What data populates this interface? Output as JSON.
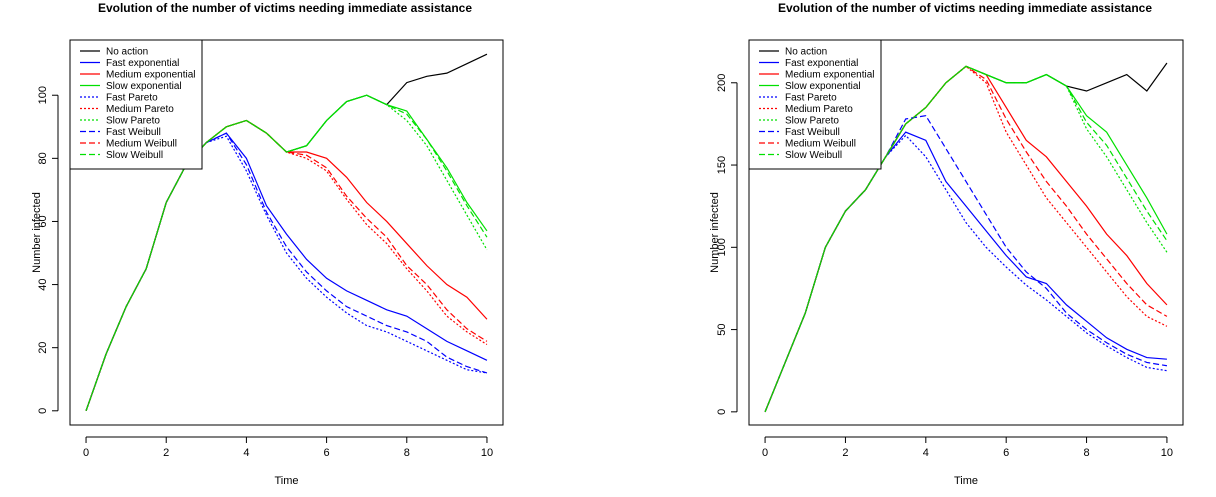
{
  "chart_data": [
    {
      "type": "line",
      "title": "Evolution of the number of victims needing immediate assistance",
      "xlabel": "Time",
      "ylabel": "Number infected",
      "x": [
        0,
        0.5,
        1,
        1.5,
        2,
        2.5,
        3,
        3.5,
        4,
        4.5,
        5,
        5.5,
        6,
        6.5,
        7,
        7.5,
        8,
        8.5,
        9,
        9.5,
        10
      ],
      "xlim": [
        -0.4,
        10.4
      ],
      "ylim": [
        -4.5,
        117.5
      ],
      "xticks": [
        0,
        2,
        4,
        6,
        8,
        10
      ],
      "yticks": [
        0,
        20,
        40,
        60,
        80,
        100
      ],
      "legend": "top-left",
      "series": [
        {
          "name": "No action",
          "color": "#000000",
          "dash": "solid",
          "values": [
            0,
            18,
            33,
            45,
            66,
            78,
            85,
            90,
            92,
            88,
            82,
            84,
            92,
            98,
            100,
            97,
            104,
            106,
            107,
            110,
            113
          ]
        },
        {
          "name": "Fast exponential",
          "color": "#0000ff",
          "dash": "solid",
          "values": [
            0,
            18,
            33,
            45,
            66,
            78,
            85,
            88,
            80,
            65,
            56,
            48,
            42,
            38,
            35,
            32,
            30,
            26,
            22,
            19,
            16
          ]
        },
        {
          "name": "Medium exponential",
          "color": "#ff0000",
          "dash": "solid",
          "values": [
            0,
            18,
            33,
            45,
            66,
            78,
            85,
            90,
            92,
            88,
            82,
            82,
            80,
            74,
            66,
            60,
            53,
            46,
            40,
            36,
            29
          ]
        },
        {
          "name": "Slow exponential",
          "color": "#00e000",
          "dash": "solid",
          "values": [
            0,
            18,
            33,
            45,
            66,
            78,
            85,
            90,
            92,
            88,
            82,
            84,
            92,
            98,
            100,
            97,
            95,
            86,
            77,
            66,
            57
          ]
        },
        {
          "name": "Fast Pareto",
          "color": "#0000ff",
          "dash": "dotted",
          "values": [
            0,
            18,
            33,
            45,
            66,
            78,
            85,
            87,
            76,
            62,
            50,
            42,
            36,
            31,
            27,
            25,
            22,
            19,
            16,
            13,
            12
          ]
        },
        {
          "name": "Medium Pareto",
          "color": "#ff0000",
          "dash": "dotted",
          "values": [
            0,
            18,
            33,
            45,
            66,
            78,
            85,
            90,
            92,
            88,
            82,
            80,
            76,
            67,
            59,
            53,
            45,
            38,
            30,
            25,
            21
          ]
        },
        {
          "name": "Slow Pareto",
          "color": "#00e000",
          "dash": "dotted",
          "values": [
            0,
            18,
            33,
            45,
            66,
            78,
            85,
            90,
            92,
            88,
            82,
            84,
            92,
            98,
            100,
            97,
            92,
            84,
            73,
            62,
            51
          ]
        },
        {
          "name": "Fast Weibull",
          "color": "#0000ff",
          "dash": "dashed",
          "values": [
            0,
            18,
            33,
            45,
            66,
            78,
            85,
            88,
            78,
            63,
            52,
            44,
            38,
            33,
            30,
            27,
            25,
            22,
            17,
            14,
            12
          ]
        },
        {
          "name": "Medium Weibull",
          "color": "#ff0000",
          "dash": "dashed",
          "values": [
            0,
            18,
            33,
            45,
            66,
            78,
            85,
            90,
            92,
            88,
            82,
            81,
            77,
            68,
            61,
            55,
            46,
            40,
            32,
            26,
            22
          ]
        },
        {
          "name": "Slow Weibull",
          "color": "#00e000",
          "dash": "dashed",
          "values": [
            0,
            18,
            33,
            45,
            66,
            78,
            85,
            90,
            92,
            88,
            82,
            84,
            92,
            98,
            100,
            97,
            94,
            86,
            76,
            65,
            55
          ]
        }
      ]
    },
    {
      "type": "line",
      "title": "Evolution of the number of victims needing immediate assistance",
      "xlabel": "Time",
      "ylabel": "Number infected",
      "x": [
        0,
        0.5,
        1,
        1.5,
        2,
        2.5,
        3,
        3.5,
        4,
        4.5,
        5,
        5.5,
        6,
        6.5,
        7,
        7.5,
        8,
        8.5,
        9,
        9.5,
        10
      ],
      "xlim": [
        -0.4,
        10.4
      ],
      "ylim": [
        -8,
        226
      ],
      "xticks": [
        0,
        2,
        4,
        6,
        8,
        10
      ],
      "yticks": [
        0,
        50,
        100,
        150,
        200
      ],
      "legend": "top-left",
      "series": [
        {
          "name": "No action",
          "color": "#000000",
          "dash": "solid",
          "values": [
            0,
            30,
            60,
            100,
            122,
            135,
            155,
            175,
            185,
            200,
            210,
            205,
            200,
            200,
            205,
            198,
            195,
            200,
            205,
            195,
            212
          ]
        },
        {
          "name": "Fast exponential",
          "color": "#0000ff",
          "dash": "solid",
          "values": [
            0,
            30,
            60,
            100,
            122,
            135,
            155,
            170,
            165,
            140,
            125,
            110,
            95,
            82,
            78,
            65,
            55,
            45,
            38,
            33,
            32
          ]
        },
        {
          "name": "Medium exponential",
          "color": "#ff0000",
          "dash": "solid",
          "values": [
            0,
            30,
            60,
            100,
            122,
            135,
            155,
            175,
            185,
            200,
            210,
            205,
            185,
            165,
            155,
            140,
            125,
            108,
            95,
            78,
            65
          ]
        },
        {
          "name": "Slow exponential",
          "color": "#00e000",
          "dash": "solid",
          "values": [
            0,
            30,
            60,
            100,
            122,
            135,
            155,
            175,
            185,
            200,
            210,
            205,
            200,
            200,
            205,
            198,
            180,
            170,
            150,
            130,
            108
          ]
        },
        {
          "name": "Fast Pareto",
          "color": "#0000ff",
          "dash": "dotted",
          "values": [
            0,
            30,
            60,
            100,
            122,
            135,
            155,
            168,
            155,
            135,
            115,
            100,
            88,
            77,
            68,
            58,
            48,
            40,
            33,
            27,
            25
          ]
        },
        {
          "name": "Medium Pareto",
          "color": "#ff0000",
          "dash": "dotted",
          "values": [
            0,
            30,
            60,
            100,
            122,
            135,
            155,
            175,
            185,
            200,
            210,
            200,
            170,
            150,
            130,
            115,
            100,
            85,
            70,
            58,
            52
          ]
        },
        {
          "name": "Slow Pareto",
          "color": "#00e000",
          "dash": "dotted",
          "values": [
            0,
            30,
            60,
            100,
            122,
            135,
            155,
            175,
            185,
            200,
            210,
            205,
            200,
            200,
            205,
            198,
            172,
            155,
            135,
            115,
            97
          ]
        },
        {
          "name": "Fast Weibull",
          "color": "#0000ff",
          "dash": "dashed",
          "values": [
            0,
            30,
            60,
            100,
            122,
            135,
            155,
            178,
            180,
            160,
            140,
            120,
            100,
            85,
            75,
            60,
            50,
            42,
            35,
            30,
            28
          ]
        },
        {
          "name": "Medium Weibull",
          "color": "#ff0000",
          "dash": "dashed",
          "values": [
            0,
            30,
            60,
            100,
            122,
            135,
            155,
            175,
            185,
            200,
            210,
            202,
            178,
            158,
            140,
            125,
            108,
            93,
            78,
            65,
            58
          ]
        },
        {
          "name": "Slow Weibull",
          "color": "#00e000",
          "dash": "dashed",
          "values": [
            0,
            30,
            60,
            100,
            122,
            135,
            155,
            175,
            185,
            200,
            210,
            205,
            200,
            200,
            205,
            198,
            176,
            162,
            142,
            122,
            104
          ]
        }
      ]
    }
  ]
}
